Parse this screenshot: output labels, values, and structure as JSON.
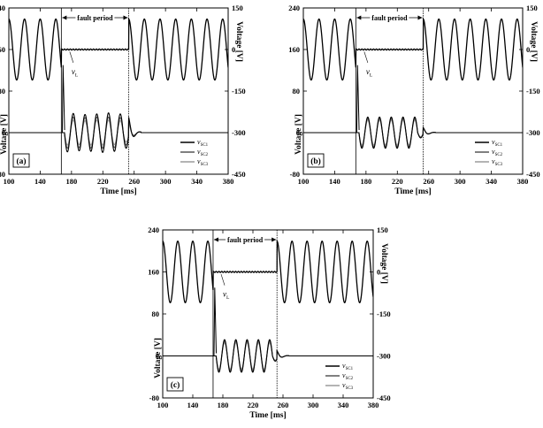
{
  "chart_data": [
    {
      "panel_label": "(a)",
      "type": "line",
      "xlabel": "Time [ms]",
      "ylabel_left": "Voltage [V]",
      "ylabel_right": "Voltage [V]",
      "xlim": [
        100,
        380
      ],
      "xticks": [
        100,
        140,
        180,
        220,
        260,
        300,
        340,
        380
      ],
      "ylim_left": [
        -80,
        240
      ],
      "yticks_left": [
        -80,
        0,
        80,
        160,
        240
      ],
      "ylim_right": [
        -450,
        150
      ],
      "yticks_right": [
        -450,
        -300,
        -150,
        0,
        150
      ],
      "fault_period": {
        "label": "fault period",
        "start_ms": 167,
        "end_ms": 253
      },
      "annotation": "v",
      "annotation_sub": "L",
      "series": [
        {
          "name": "v",
          "sub": "L",
          "axis": "right",
          "description_values": {
            "amplitude_V": 110,
            "frequency_Hz": 50,
            "fault_level_V": 0
          }
        },
        {
          "name": "v",
          "sub": "SC1",
          "axis": "left",
          "values_peak": [
            37,
            35,
            36,
            38,
            36,
            30
          ]
        },
        {
          "name": "v",
          "sub": "SC2",
          "axis": "left",
          "values_peak": [
            30,
            29,
            30,
            30,
            29,
            24
          ]
        },
        {
          "name": "v",
          "sub": "SC3",
          "axis": "left",
          "values_peak": [
            24,
            23,
            24,
            24,
            23,
            18
          ]
        }
      ],
      "legend": [
        {
          "text": "v",
          "sub": "SC1"
        },
        {
          "text": "v",
          "sub": "SC2"
        },
        {
          "text": "v",
          "sub": "SC3"
        }
      ],
      "spike_peak_V": 130
    },
    {
      "panel_label": "(b)",
      "type": "line",
      "xlabel": "Time [ms]",
      "ylabel_left": "Voltage [V]",
      "ylabel_right": "Voltage [V]",
      "xlim": [
        100,
        380
      ],
      "xticks": [
        100,
        140,
        180,
        220,
        260,
        300,
        340,
        380
      ],
      "ylim_left": [
        -80,
        240
      ],
      "yticks_left": [
        -80,
        0,
        80,
        160,
        240
      ],
      "ylim_right": [
        -450,
        150
      ],
      "yticks_right": [
        -450,
        -300,
        -150,
        0,
        150
      ],
      "fault_period": {
        "label": "fault period",
        "start_ms": 167,
        "end_ms": 253
      },
      "annotation": "v",
      "annotation_sub": "L",
      "series": [
        {
          "name": "v",
          "sub": "L",
          "axis": "right",
          "description_values": {
            "amplitude_V": 110,
            "frequency_Hz": 50,
            "fault_level_V": 0
          }
        },
        {
          "name": "v",
          "sub": "SC1",
          "axis": "left",
          "values_peak": [
            30,
            30,
            30,
            30,
            30,
            10
          ]
        },
        {
          "name": "v",
          "sub": "SC2",
          "axis": "left",
          "values_peak": [
            27,
            27,
            27,
            27,
            27,
            9
          ]
        },
        {
          "name": "v",
          "sub": "SC3",
          "axis": "left",
          "values_peak": [
            24,
            24,
            24,
            24,
            24,
            8
          ]
        }
      ],
      "legend": [
        {
          "text": "v",
          "sub": "SC1"
        },
        {
          "text": "v",
          "sub": "SC2"
        },
        {
          "text": "v",
          "sub": "SC3"
        }
      ],
      "spike_peak_V": 130
    },
    {
      "panel_label": "(c)",
      "type": "line",
      "xlabel": "Time [ms]",
      "ylabel_left": "Voltage [V]",
      "ylabel_right": "Voltage [V]",
      "xlim": [
        100,
        380
      ],
      "xticks": [
        100,
        140,
        180,
        220,
        260,
        300,
        340,
        380
      ],
      "ylim_left": [
        -80,
        240
      ],
      "yticks_left": [
        -80,
        0,
        80,
        160,
        240
      ],
      "ylim_right": [
        -450,
        150
      ],
      "yticks_right": [
        -450,
        -300,
        -150,
        0,
        150
      ],
      "fault_period": {
        "label": "fault period",
        "start_ms": 167,
        "end_ms": 252
      },
      "annotation": "v",
      "annotation_sub": "L",
      "series": [
        {
          "name": "v",
          "sub": "L",
          "axis": "right",
          "description_values": {
            "amplitude_V": 110,
            "frequency_Hz": 50,
            "fault_level_V": 0
          }
        },
        {
          "name": "v",
          "sub": "SC1",
          "axis": "left",
          "values_peak": [
            31,
            31,
            31,
            31,
            31,
            10
          ]
        },
        {
          "name": "v",
          "sub": "SC2",
          "axis": "left",
          "values_peak": [
            28,
            28,
            28,
            28,
            28,
            9
          ]
        },
        {
          "name": "v",
          "sub": "SC3",
          "axis": "left",
          "values_peak": [
            25,
            25,
            25,
            25,
            25,
            8
          ]
        }
      ],
      "legend": [
        {
          "text": "v",
          "sub": "SC1"
        },
        {
          "text": "v",
          "sub": "SC2"
        },
        {
          "text": "v",
          "sub": "SC3"
        }
      ],
      "spike_peak_V": 130
    }
  ],
  "colors": {
    "vL": "#000000",
    "SC1": "#000000",
    "SC2": "#555555",
    "SC3": "#9a9a9a",
    "axis": "#000000"
  }
}
